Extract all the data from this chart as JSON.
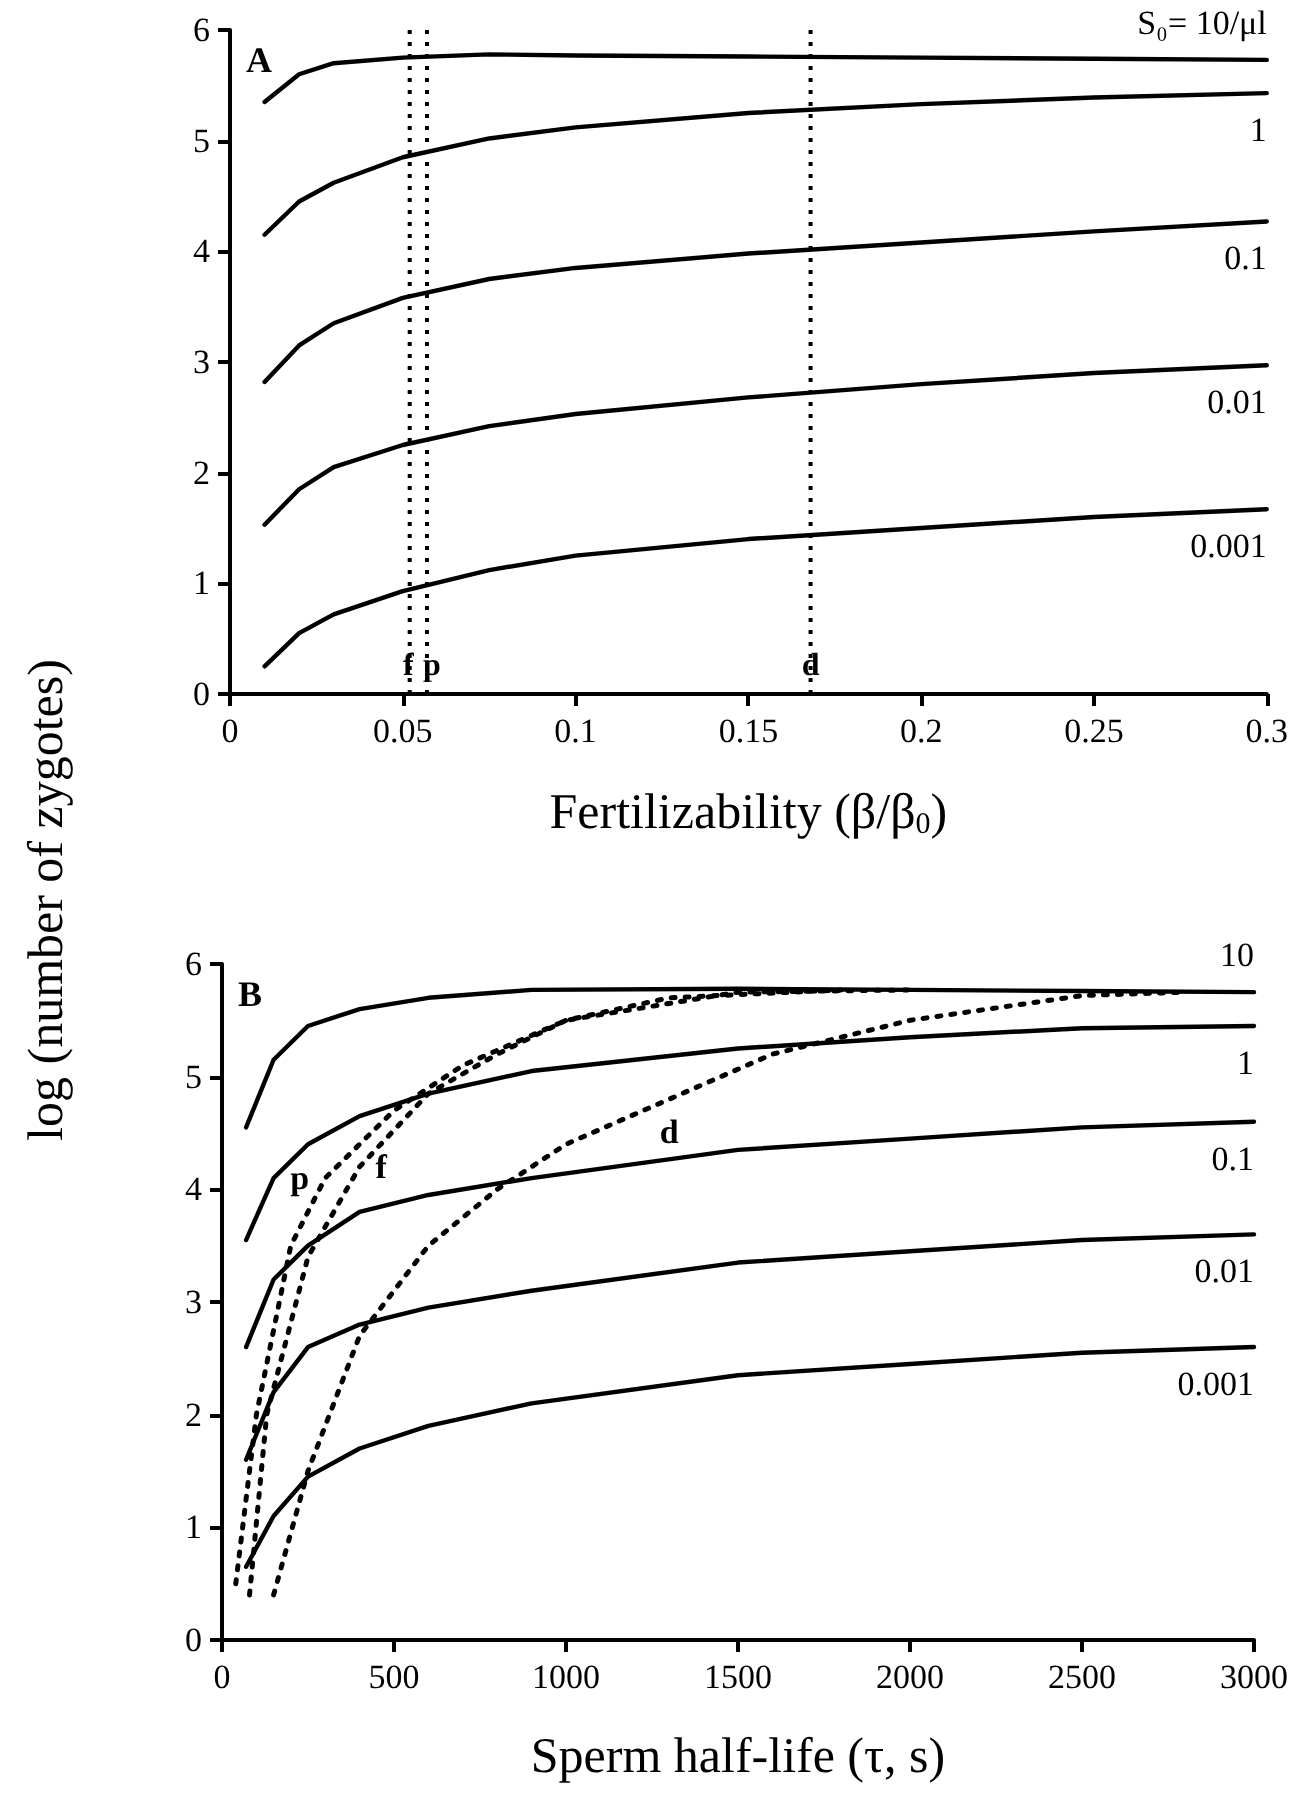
{
  "chart_data": [
    {
      "type": "line",
      "xlabel": "Fertilizability (β/β$_{0}$)",
      "ylabel": "log (number of zygotes)",
      "annotations": [
        "A"
      ],
      "x": [
        0.01,
        0.02,
        0.03,
        0.05,
        0.075,
        0.1,
        0.15,
        0.2,
        0.25,
        0.3
      ],
      "series": [
        {
          "name": "S₀= 10/μl",
          "color": "#000000",
          "values": [
            5.35,
            5.6,
            5.7,
            5.75,
            5.78,
            5.77,
            5.76,
            5.75,
            5.74,
            5.73
          ]
        },
        {
          "name": "1",
          "color": "#000000",
          "values": [
            4.15,
            4.45,
            4.62,
            4.85,
            5.02,
            5.12,
            5.25,
            5.33,
            5.39,
            5.43
          ]
        },
        {
          "name": "0.1",
          "color": "#000000",
          "values": [
            2.82,
            3.15,
            3.35,
            3.58,
            3.75,
            3.85,
            3.98,
            4.08,
            4.18,
            4.27
          ]
        },
        {
          "name": "0.01",
          "color": "#000000",
          "values": [
            1.53,
            1.85,
            2.05,
            2.25,
            2.42,
            2.53,
            2.68,
            2.8,
            2.9,
            2.97
          ]
        },
        {
          "name": "0.001",
          "color": "#000000",
          "values": [
            0.25,
            0.55,
            0.72,
            0.93,
            1.12,
            1.25,
            1.4,
            1.5,
            1.6,
            1.67
          ]
        }
      ],
      "ref_lines": [
        {
          "axis": "x",
          "value": 0.052,
          "label": "f",
          "line_style": "dotted",
          "color": "#000000"
        },
        {
          "axis": "x",
          "value": 0.057,
          "label": "p",
          "line_style": "dotted",
          "color": "#000000"
        },
        {
          "axis": "x",
          "value": 0.168,
          "label": "d",
          "line_style": "dotted",
          "color": "#000000"
        }
      ],
      "xlim": [
        0,
        0.3
      ],
      "xticks": [
        0,
        0.05,
        0.1,
        0.15,
        0.2,
        0.25,
        0.3
      ],
      "ylim": [
        0,
        6
      ],
      "yticks": [
        0,
        1,
        2,
        3,
        4,
        5,
        6
      ],
      "grid": false,
      "legend": false,
      "marker": "none",
      "line_style": "solid"
    },
    {
      "type": "line",
      "xlabel": "Sperm half-life (τ, s)",
      "annotations": [
        "B"
      ],
      "x": [
        70,
        150,
        250,
        400,
        600,
        900,
        1500,
        2000,
        2500,
        3000
      ],
      "series": [
        {
          "name": "10",
          "color": "#000000",
          "values": [
            4.55,
            5.15,
            5.45,
            5.6,
            5.7,
            5.77,
            5.78,
            5.77,
            5.76,
            5.75
          ]
        },
        {
          "name": "1",
          "color": "#000000",
          "values": [
            3.55,
            4.1,
            4.4,
            4.65,
            4.85,
            5.05,
            5.25,
            5.35,
            5.43,
            5.45
          ]
        },
        {
          "name": "0.1",
          "color": "#000000",
          "values": [
            2.6,
            3.2,
            3.5,
            3.8,
            3.95,
            4.1,
            4.35,
            4.45,
            4.55,
            4.6
          ]
        },
        {
          "name": "0.01",
          "color": "#000000",
          "values": [
            1.6,
            2.2,
            2.6,
            2.8,
            2.95,
            3.1,
            3.35,
            3.45,
            3.55,
            3.6
          ]
        },
        {
          "name": "0.001",
          "color": "#000000",
          "values": [
            0.65,
            1.1,
            1.45,
            1.7,
            1.9,
            2.1,
            2.35,
            2.45,
            2.55,
            2.6
          ]
        },
        {
          "name": "p",
          "color": "#000000",
          "line_style": "dotted",
          "x": [
            40,
            100,
            200,
            300,
            500,
            700,
            1000,
            1500,
            2000
          ],
          "values": [
            0.5,
            2,
            3.5,
            4.1,
            4.7,
            5.1,
            5.5,
            5.75,
            5.77
          ]
        },
        {
          "name": "f",
          "color": "#000000",
          "line_style": "dotted",
          "x": [
            80,
            130,
            250,
            400,
            600,
            800,
            1000,
            1300,
            1800
          ],
          "values": [
            0.4,
            2,
            3.4,
            4.2,
            4.85,
            5.2,
            5.5,
            5.7,
            5.77
          ]
        },
        {
          "name": "d",
          "color": "#000000",
          "line_style": "dotted",
          "x": [
            150,
            250,
            400,
            600,
            800,
            1000,
            1300,
            1600,
            2000,
            2500,
            2800
          ],
          "values": [
            0.4,
            1.5,
            2.7,
            3.5,
            4.0,
            4.4,
            4.8,
            5.2,
            5.5,
            5.72,
            5.75
          ]
        }
      ],
      "xlim": [
        0,
        3000
      ],
      "xticks": [
        0,
        500,
        1000,
        1500,
        2000,
        2500,
        3000
      ],
      "ylim": [
        0,
        6
      ],
      "yticks": [
        0,
        1,
        2,
        3,
        4,
        5,
        6
      ],
      "grid": false,
      "legend": false,
      "marker": "none",
      "line_style": "solid"
    }
  ]
}
